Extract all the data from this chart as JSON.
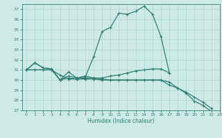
{
  "xlabel": "Humidex (Indice chaleur)",
  "xlim": [
    -0.5,
    23
  ],
  "ylim": [
    27,
    37.5
  ],
  "yticks": [
    27,
    28,
    29,
    30,
    31,
    32,
    33,
    34,
    35,
    36,
    37
  ],
  "xticks": [
    0,
    1,
    2,
    3,
    4,
    5,
    6,
    7,
    8,
    9,
    10,
    11,
    12,
    13,
    14,
    15,
    16,
    17,
    18,
    19,
    20,
    21,
    22,
    23
  ],
  "bg_color": "#ceeae6",
  "line_color": "#2e7d72",
  "grid_color": "#aed4cf",
  "series1_x": [
    0,
    1,
    2,
    3,
    4,
    5,
    6,
    7,
    8,
    9,
    10,
    11,
    12,
    13,
    14,
    15,
    16,
    17
  ],
  "series1_y": [
    31.0,
    31.7,
    31.2,
    31.1,
    30.0,
    30.8,
    30.2,
    30.3,
    32.3,
    34.8,
    35.2,
    36.6,
    36.5,
    36.8,
    37.3,
    36.5,
    34.3,
    30.7
  ],
  "series2_x": [
    0,
    1,
    2,
    3,
    4,
    5,
    6,
    7,
    8,
    9,
    10,
    11,
    12,
    13,
    14,
    15,
    16,
    17
  ],
  "series2_y": [
    31.0,
    31.7,
    31.2,
    31.1,
    30.0,
    30.2,
    30.1,
    30.2,
    30.2,
    30.2,
    30.4,
    30.5,
    30.7,
    30.9,
    31.0,
    31.1,
    31.1,
    30.7
  ],
  "series3_x": [
    0,
    1,
    2,
    3,
    4,
    5,
    6,
    7,
    8,
    9,
    10,
    11,
    12,
    13,
    14,
    15,
    16,
    17,
    18,
    19,
    20,
    21,
    22
  ],
  "series3_y": [
    31.0,
    31.0,
    31.0,
    31.0,
    30.5,
    30.1,
    30.1,
    30.1,
    30.1,
    30.0,
    30.0,
    30.0,
    30.0,
    30.0,
    30.0,
    30.0,
    30.0,
    29.5,
    29.2,
    28.8,
    28.3,
    27.8,
    27.2
  ],
  "series4_x": [
    0,
    1,
    2,
    3,
    4,
    5,
    6,
    7,
    8,
    9,
    10,
    11,
    12,
    13,
    14,
    15,
    16,
    17,
    18,
    19,
    20,
    21,
    22,
    23
  ],
  "series4_y": [
    31.0,
    31.0,
    31.0,
    31.0,
    30.0,
    30.4,
    30.2,
    30.4,
    30.2,
    30.1,
    30.0,
    30.0,
    30.0,
    30.0,
    30.0,
    30.0,
    30.0,
    29.8,
    29.2,
    28.7,
    27.9,
    27.5,
    26.9,
    26.8
  ]
}
